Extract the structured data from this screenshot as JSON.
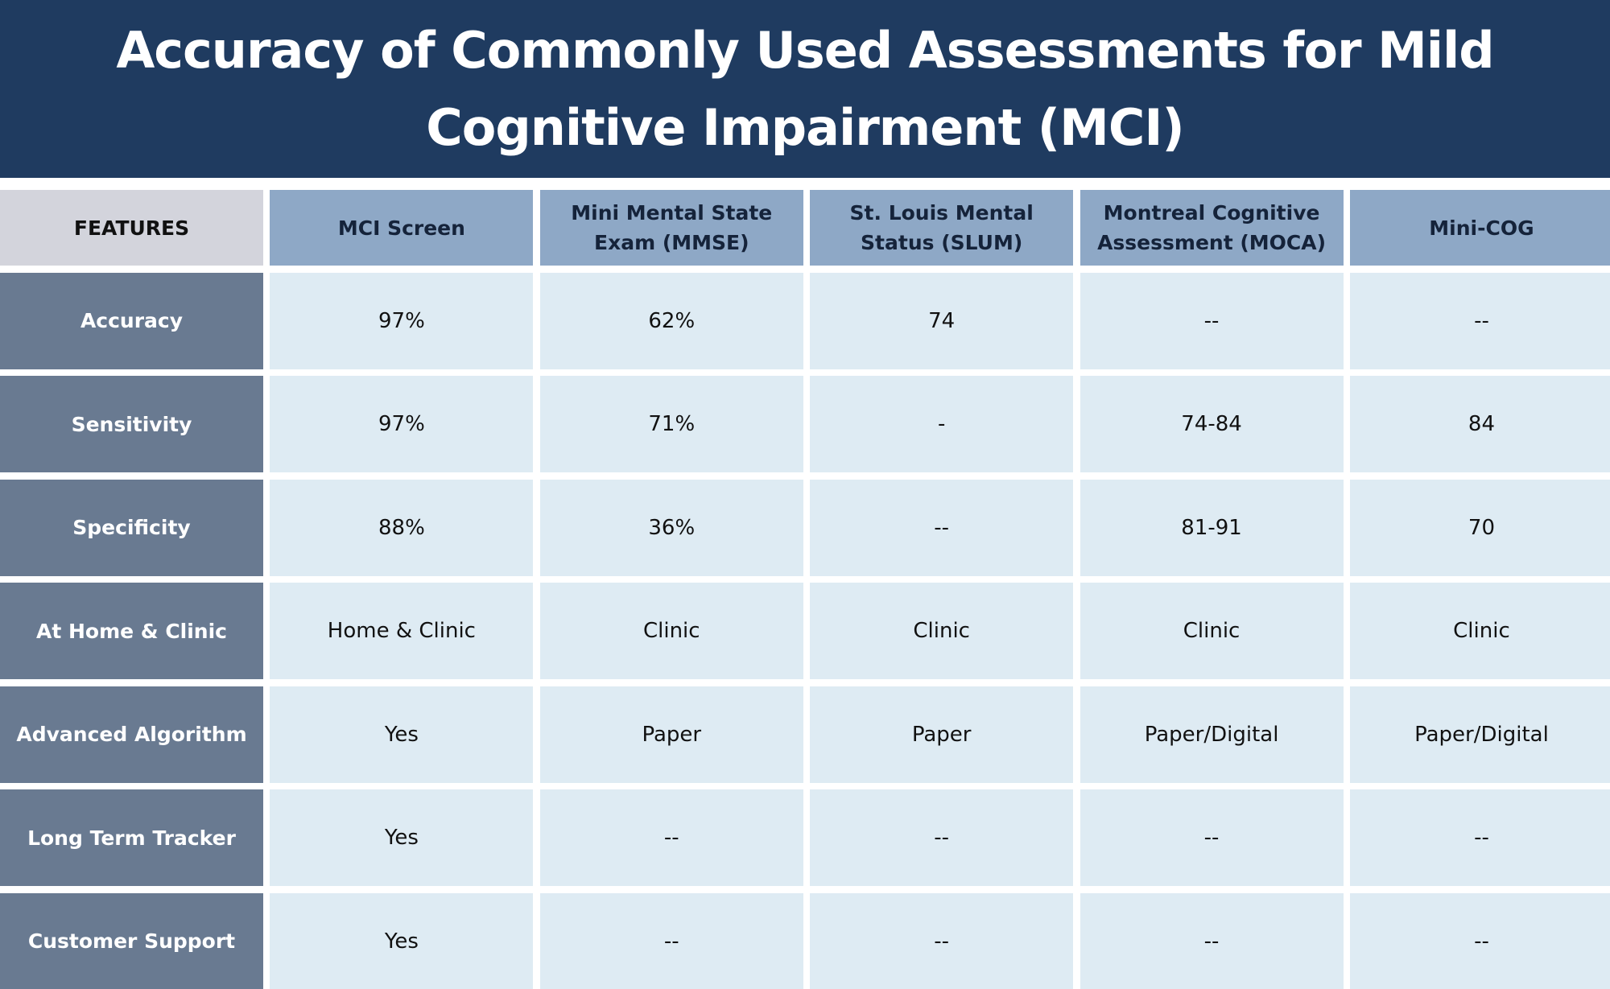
{
  "title": "Accuracy of Commonly Used Assessments for Mild Cognitive Impairment (MCI)",
  "table": {
    "corner_label": "FEATURES",
    "columns": [
      "MCI Screen",
      "Mini Mental State Exam (MMSE)",
      "St. Louis Mental Status (SLUM)",
      "Montreal Cognitive Assessment (MOCA)",
      "Mini-COG"
    ],
    "rows": [
      {
        "label": "Accuracy",
        "cells": [
          "97%",
          "62%",
          "74",
          "--",
          "--"
        ]
      },
      {
        "label": "Sensitivity",
        "cells": [
          "97%",
          "71%",
          "-",
          "74-84",
          "84"
        ]
      },
      {
        "label": "Specificity",
        "cells": [
          "88%",
          "36%",
          "--",
          "81-91",
          "70"
        ]
      },
      {
        "label": "At Home & Clinic",
        "cells": [
          "Home & Clinic",
          "Clinic",
          "Clinic",
          "Clinic",
          "Clinic"
        ]
      },
      {
        "label": "Advanced Algorithm",
        "cells": [
          "Yes",
          "Paper",
          "Paper",
          "Paper/Digital",
          "Paper/Digital"
        ]
      },
      {
        "label": "Long Term Tracker",
        "cells": [
          "Yes",
          "--",
          "--",
          "--",
          "--"
        ]
      },
      {
        "label": "Customer Support",
        "cells": [
          "Yes",
          "--",
          "--",
          "--",
          "--"
        ]
      }
    ]
  },
  "colors": {
    "header_bg": "#1f3b60",
    "column_header_bg": "#8ea8c6",
    "row_header_bg": "#697a91",
    "corner_bg": "#d3d4dc",
    "cell_bg": "#deebf3"
  }
}
